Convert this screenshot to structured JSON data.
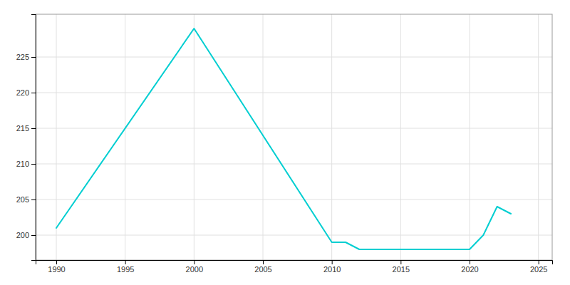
{
  "chart_data": {
    "type": "line",
    "x": [
      1990,
      2000,
      2010,
      2011,
      2012,
      2013,
      2014,
      2015,
      2016,
      2017,
      2018,
      2019,
      2020,
      2021,
      2022,
      2023
    ],
    "values": [
      201,
      229,
      199,
      199,
      198,
      198,
      198,
      198,
      198,
      198,
      198,
      198,
      198,
      200,
      204,
      203
    ],
    "color": "#00CED1",
    "xlim": [
      1988.5,
      2026
    ],
    "ylim": [
      196.5,
      231
    ],
    "xticks": [
      1990,
      1995,
      2000,
      2005,
      2010,
      2015,
      2020,
      2025
    ],
    "yticks": [
      200,
      205,
      210,
      215,
      220,
      225
    ],
    "grid": true
  }
}
